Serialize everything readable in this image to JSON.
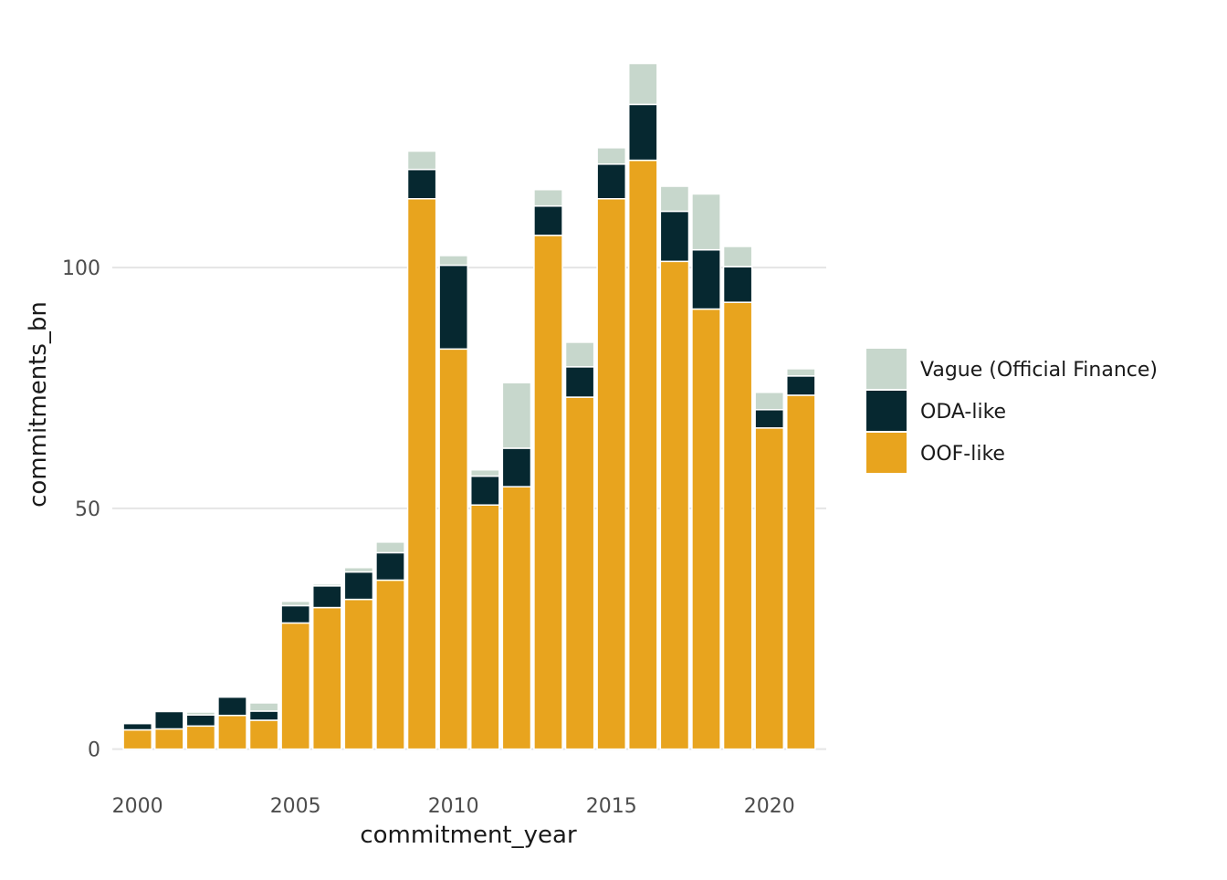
{
  "chart_data": {
    "type": "bar",
    "stacked": true,
    "xlabel": "commitment_year",
    "ylabel": "commitments_bn",
    "x": [
      2000,
      2001,
      2002,
      2003,
      2004,
      2005,
      2006,
      2007,
      2008,
      2009,
      2010,
      2011,
      2012,
      2013,
      2014,
      2015,
      2016,
      2017,
      2018,
      2019,
      2020,
      2021
    ],
    "x_ticks": [
      2000,
      2005,
      2010,
      2015,
      2020
    ],
    "y_ticks": [
      0,
      50,
      100
    ],
    "xlim": [
      1999.2,
      2021.8
    ],
    "ylim": [
      -5,
      148
    ],
    "grid": "horizontal major only",
    "legend_position": "right",
    "series": [
      {
        "name": "OOF-like",
        "color": "#E8A41E",
        "values": [
          4.0,
          4.2,
          4.8,
          7.0,
          6.0,
          26.2,
          29.4,
          31.1,
          35.1,
          114.3,
          83.1,
          50.7,
          54.5,
          106.7,
          73.1,
          114.3,
          122.3,
          101.3,
          91.4,
          92.8,
          66.7,
          73.5
        ]
      },
      {
        "name": "ODA-like",
        "color": "#062830",
        "values": [
          1.3,
          3.6,
          2.3,
          3.8,
          1.9,
          3.6,
          4.5,
          5.7,
          5.7,
          6.1,
          17.4,
          6.0,
          8.0,
          6.1,
          6.3,
          7.2,
          11.6,
          10.4,
          12.3,
          7.4,
          3.8,
          4.0
        ]
      },
      {
        "name": "Vague (Official Finance)",
        "color": "#C7D7CC",
        "values": [
          0.0,
          0.0,
          0.6,
          0.0,
          1.7,
          0.9,
          0.4,
          0.9,
          2.2,
          3.8,
          2.0,
          1.3,
          13.6,
          3.4,
          5.1,
          3.4,
          8.5,
          5.2,
          11.6,
          4.2,
          3.6,
          1.5
        ]
      }
    ],
    "legend_order": [
      "Vague (Official Finance)",
      "ODA-like",
      "OOF-like"
    ]
  }
}
